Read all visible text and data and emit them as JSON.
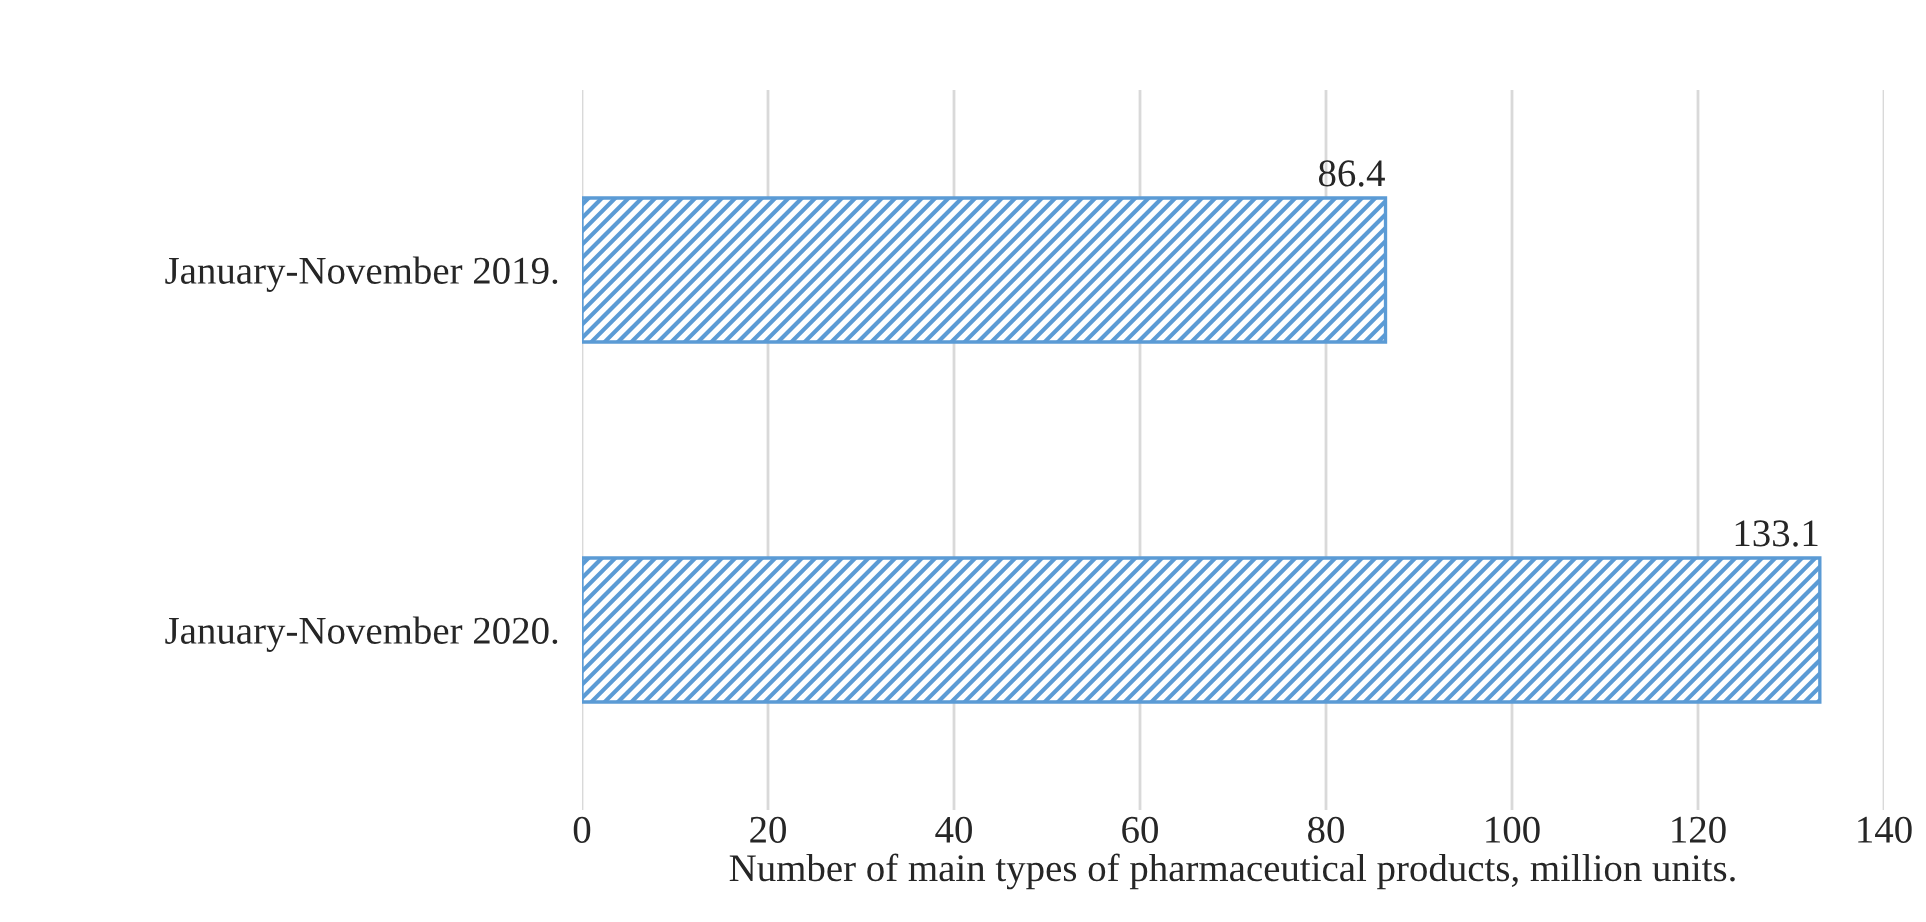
{
  "chart_data": {
    "type": "bar",
    "orientation": "horizontal",
    "xlabel": "Number of main types of pharmaceutical products, million units.",
    "categories": [
      "January-November 2019.",
      "January-November 2020."
    ],
    "values": [
      86.4,
      133.1
    ],
    "color": "#5b9bd5",
    "xlim": [
      0,
      140
    ],
    "xticks": [
      0,
      20,
      40,
      60,
      80,
      100,
      120,
      140
    ],
    "grid": "x",
    "data_labels": true
  }
}
